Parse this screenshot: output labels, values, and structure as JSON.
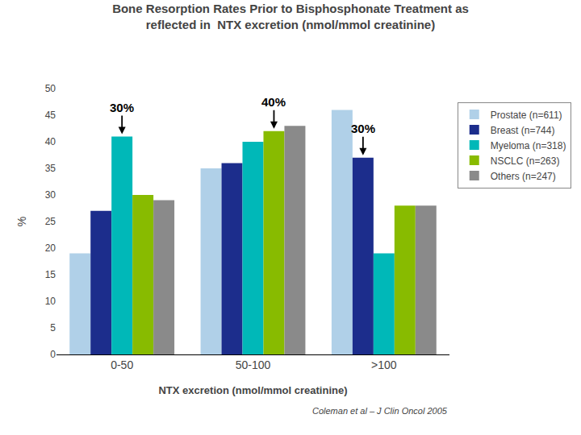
{
  "chart_data": {
    "type": "bar",
    "title": "Bone Resorption Rates Prior to Bisphosphonate Treatment as",
    "subtitle": "reflected in  NTX excretion (nmol/mmol creatinine)",
    "x_label": "NTX excretion (nmol/mmol creatinine)",
    "y_label": "%",
    "categories": [
      "0-50",
      "50-100",
      ">100"
    ],
    "series": [
      {
        "name": "Prostate (n=611)",
        "color": "#B0D0E8",
        "values": [
          19,
          35,
          46
        ]
      },
      {
        "name": "Breast (n=744)",
        "color": "#1C2D8C",
        "values": [
          27,
          36,
          37
        ]
      },
      {
        "name": "Myeloma (n=318)",
        "color": "#00B8B8",
        "values": [
          41,
          40,
          19
        ]
      },
      {
        "name": "NSCLC (n=263)",
        "color": "#88BB00",
        "values": [
          30,
          42,
          28
        ]
      },
      {
        "name": "Others (n=247)",
        "color": "#8A8A8A",
        "values": [
          29,
          43,
          28
        ]
      }
    ],
    "ylim": [
      0,
      50
    ],
    "yticks": [
      0,
      5,
      10,
      15,
      20,
      25,
      30,
      35,
      40,
      45,
      50
    ],
    "grid": false,
    "legend": "right",
    "annotations": [
      {
        "text": "30%",
        "category": "0-50",
        "series": "Myeloma (n=318)"
      },
      {
        "text": "40%",
        "category": "50-100",
        "series": "NSCLC (n=263)"
      },
      {
        "text": "30%",
        "category": ">100",
        "series": "Breast (n=744)"
      },
      {
        "text": "Coleman et al – J Clin Oncol 2005"
      }
    ]
  }
}
